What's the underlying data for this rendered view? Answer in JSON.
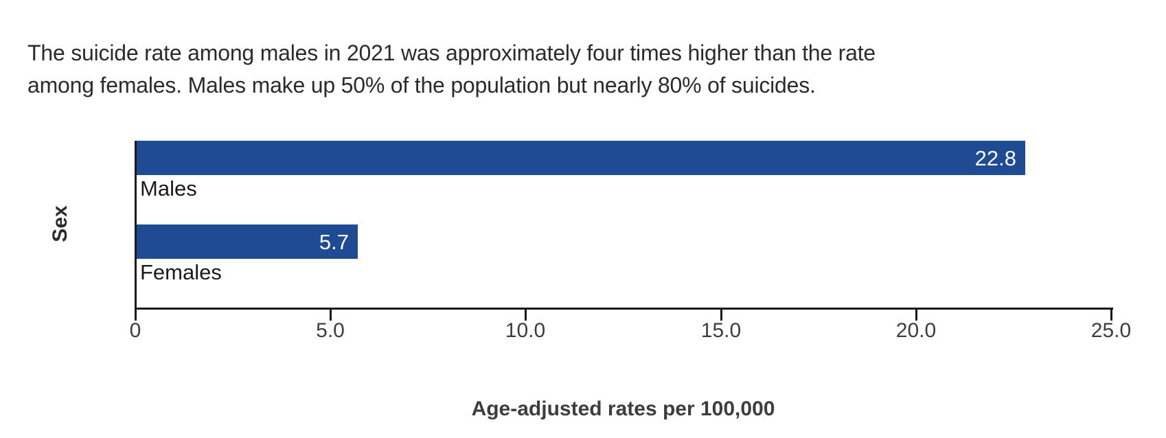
{
  "title_lines": [
    "The suicide rate among males in 2021 was approximately four times higher than the rate",
    "among females. Males make up 50% of the population but nearly 80% of suicides."
  ],
  "chart_data": {
    "type": "bar",
    "orientation": "horizontal",
    "title": "The suicide rate among males in 2021 was approximately four times higher than the rate among females. Males make up 50% of the population but nearly 80% of suicides.",
    "categories": [
      "Males",
      "Females"
    ],
    "values": [
      22.8,
      5.7
    ],
    "value_labels": [
      "22.8",
      "5.7"
    ],
    "xlabel": "Age-adjusted rates per 100,000",
    "ylabel": "Sex",
    "xlim": [
      0,
      25
    ],
    "xticks": [
      0,
      5,
      10,
      15,
      20,
      25
    ],
    "xtick_labels": [
      "0",
      "5.0",
      "10.0",
      "15.0",
      "20.0",
      "25.0"
    ],
    "grid": false,
    "legend": false
  },
  "colors": {
    "background": "#ffffff",
    "bar": "#1e4b94",
    "bar_value_text": "#ffffff",
    "title_text": "#2b2b2b",
    "category_text": "#1a1a1a",
    "tick_text": "#3d3d3d",
    "axis": "#1a1a1a"
  }
}
